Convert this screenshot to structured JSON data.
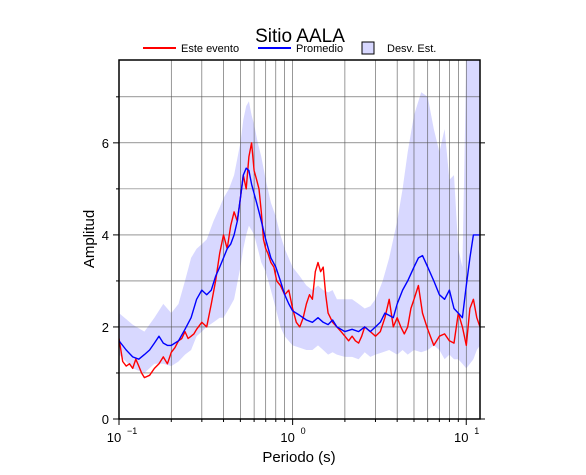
{
  "chart_data": {
    "type": "line",
    "title": "Sitio AALA",
    "xlabel": "Periodo (s)",
    "ylabel": "Amplitud",
    "xscale": "log",
    "xlim": [
      0.1,
      12
    ],
    "ylim": [
      0,
      7.8
    ],
    "x_ticks": [
      0.1,
      1,
      10
    ],
    "x_tick_labels": [
      [
        "10",
        "−1"
      ],
      [
        "10",
        "0"
      ],
      [
        "10",
        "1"
      ]
    ],
    "y_ticks": [
      0,
      2,
      4,
      6
    ],
    "y_tick_labels": [
      "0",
      "2",
      "4",
      "6"
    ],
    "grid": true,
    "legend_position": "top",
    "legend": [
      {
        "label": "Este evento",
        "kind": "line",
        "color": "#ff0000"
      },
      {
        "label": "Promedio",
        "kind": "line",
        "color": "#0000ff"
      },
      {
        "label": "Desv. Est.",
        "kind": "band",
        "color": "#d8d8ff"
      }
    ],
    "series": [
      {
        "name": "Este evento",
        "color": "#ff0000",
        "x": [
          0.1,
          0.105,
          0.11,
          0.115,
          0.12,
          0.125,
          0.13,
          0.135,
          0.14,
          0.15,
          0.16,
          0.17,
          0.18,
          0.19,
          0.2,
          0.21,
          0.22,
          0.23,
          0.24,
          0.25,
          0.26,
          0.27,
          0.28,
          0.3,
          0.32,
          0.34,
          0.36,
          0.38,
          0.4,
          0.42,
          0.44,
          0.46,
          0.48,
          0.5,
          0.52,
          0.54,
          0.56,
          0.58,
          0.6,
          0.62,
          0.64,
          0.66,
          0.68,
          0.7,
          0.72,
          0.75,
          0.78,
          0.81,
          0.85,
          0.9,
          0.95,
          1.0,
          1.05,
          1.1,
          1.15,
          1.2,
          1.25,
          1.3,
          1.35,
          1.4,
          1.45,
          1.5,
          1.55,
          1.6,
          1.65,
          1.7,
          1.8,
          1.9,
          2.0,
          2.1,
          2.2,
          2.3,
          2.4,
          2.5,
          2.6,
          2.8,
          3.0,
          3.2,
          3.4,
          3.6,
          3.8,
          4.0,
          4.2,
          4.4,
          4.6,
          4.8,
          5.0,
          5.3,
          5.6,
          6.0,
          6.5,
          7.0,
          7.5,
          8.0,
          8.5,
          9.0,
          9.5,
          10.0,
          10.5,
          11.0,
          11.5,
          12.0
        ],
        "y": [
          1.75,
          1.25,
          1.15,
          1.2,
          1.1,
          1.3,
          1.15,
          1.0,
          0.9,
          0.95,
          1.1,
          1.2,
          1.35,
          1.2,
          1.45,
          1.55,
          1.7,
          1.75,
          1.9,
          1.75,
          1.8,
          1.85,
          1.95,
          2.1,
          2.0,
          2.5,
          3.0,
          3.6,
          4.0,
          3.7,
          4.2,
          4.5,
          4.3,
          4.8,
          5.3,
          5.0,
          5.7,
          6.0,
          5.4,
          5.2,
          5.0,
          4.5,
          3.9,
          3.7,
          3.6,
          3.4,
          3.3,
          3.0,
          2.9,
          2.7,
          2.8,
          2.4,
          2.1,
          2.0,
          2.2,
          2.5,
          2.7,
          2.6,
          3.2,
          3.4,
          3.2,
          3.3,
          2.7,
          2.3,
          2.2,
          2.1,
          2.0,
          1.9,
          1.8,
          1.7,
          1.8,
          1.7,
          1.65,
          1.8,
          2.0,
          1.9,
          1.8,
          1.9,
          2.2,
          2.6,
          2.0,
          2.2,
          2.0,
          1.85,
          2.0,
          2.4,
          2.6,
          2.9,
          2.3,
          1.95,
          1.6,
          1.8,
          1.85,
          1.7,
          1.65,
          2.3,
          2.0,
          1.6,
          2.4,
          2.6,
          2.2,
          2.0
        ]
      },
      {
        "name": "Promedio",
        "color": "#0000ff",
        "x": [
          0.1,
          0.11,
          0.12,
          0.13,
          0.14,
          0.15,
          0.16,
          0.17,
          0.18,
          0.19,
          0.2,
          0.22,
          0.24,
          0.26,
          0.28,
          0.3,
          0.32,
          0.34,
          0.36,
          0.38,
          0.4,
          0.42,
          0.44,
          0.46,
          0.48,
          0.5,
          0.52,
          0.54,
          0.56,
          0.58,
          0.6,
          0.62,
          0.64,
          0.66,
          0.68,
          0.7,
          0.75,
          0.8,
          0.85,
          0.9,
          0.95,
          1.0,
          1.1,
          1.2,
          1.3,
          1.4,
          1.5,
          1.6,
          1.7,
          1.8,
          1.9,
          2.0,
          2.2,
          2.4,
          2.6,
          2.8,
          3.0,
          3.2,
          3.4,
          3.6,
          3.8,
          4.0,
          4.3,
          4.6,
          5.0,
          5.3,
          5.6,
          6.0,
          6.5,
          7.0,
          7.5,
          8.0,
          8.5,
          9.0,
          9.5,
          10.0,
          10.5,
          11.0,
          11.5,
          12.0
        ],
        "y": [
          1.7,
          1.5,
          1.35,
          1.3,
          1.4,
          1.5,
          1.65,
          1.8,
          1.65,
          1.6,
          1.6,
          1.7,
          1.95,
          2.2,
          2.6,
          2.8,
          2.7,
          2.8,
          3.1,
          3.3,
          3.5,
          3.7,
          3.8,
          4.0,
          4.3,
          4.8,
          5.3,
          5.45,
          5.4,
          5.1,
          4.9,
          4.7,
          4.5,
          4.3,
          4.1,
          3.9,
          3.5,
          3.3,
          3.0,
          2.7,
          2.5,
          2.35,
          2.25,
          2.15,
          2.1,
          2.2,
          2.1,
          2.05,
          2.15,
          2.0,
          1.95,
          1.9,
          1.95,
          1.9,
          2.0,
          1.9,
          2.0,
          2.1,
          2.3,
          2.25,
          2.2,
          2.5,
          2.8,
          3.0,
          3.3,
          3.5,
          3.55,
          3.3,
          3.0,
          2.7,
          2.6,
          2.8,
          2.4,
          2.3,
          2.2,
          2.9,
          3.5,
          4.0,
          4.0,
          4.0
        ]
      }
    ],
    "band": {
      "name": "Desv. Est.",
      "color": "#d8d8ff",
      "x": [
        0.1,
        0.12,
        0.14,
        0.16,
        0.18,
        0.2,
        0.22,
        0.24,
        0.26,
        0.28,
        0.3,
        0.32,
        0.35,
        0.38,
        0.4,
        0.43,
        0.46,
        0.5,
        0.52,
        0.54,
        0.56,
        0.58,
        0.6,
        0.63,
        0.66,
        0.7,
        0.75,
        0.8,
        0.85,
        0.9,
        1.0,
        1.1,
        1.2,
        1.3,
        1.4,
        1.5,
        1.6,
        1.7,
        1.8,
        2.0,
        2.2,
        2.4,
        2.6,
        2.8,
        3.0,
        3.3,
        3.6,
        4.0,
        4.3,
        4.6,
        5.0,
        5.5,
        6.0,
        6.5,
        7.0,
        7.5,
        8.0,
        8.5,
        9.0,
        9.5,
        10.0,
        10.5,
        11.0,
        11.5,
        12.0
      ],
      "upper": [
        2.3,
        2.05,
        1.9,
        2.2,
        2.5,
        2.3,
        2.5,
        3.0,
        3.5,
        3.7,
        3.8,
        3.9,
        4.3,
        4.6,
        4.8,
        5.0,
        5.3,
        6.0,
        6.5,
        6.8,
        6.9,
        6.6,
        6.4,
        6.0,
        5.7,
        5.2,
        4.7,
        4.4,
        4.0,
        3.7,
        3.3,
        3.1,
        2.9,
        2.8,
        2.9,
        2.8,
        2.75,
        2.8,
        2.6,
        2.6,
        2.6,
        2.5,
        2.4,
        2.45,
        2.6,
        3.0,
        3.5,
        4.3,
        5.0,
        5.8,
        6.6,
        7.1,
        7.0,
        6.3,
        5.8,
        6.3,
        5.2,
        5.3,
        3.7,
        3.3,
        7.8,
        7.8,
        7.8,
        7.8,
        7.8
      ],
      "lower": [
        1.4,
        1.1,
        1.0,
        1.2,
        1.2,
        1.15,
        1.25,
        1.4,
        1.5,
        1.8,
        1.9,
        2.0,
        2.1,
        2.2,
        2.2,
        2.4,
        2.6,
        3.3,
        3.7,
        4.0,
        4.2,
        4.1,
        4.0,
        3.7,
        3.4,
        3.2,
        2.8,
        2.4,
        2.0,
        1.8,
        1.6,
        1.55,
        1.5,
        1.5,
        1.6,
        1.5,
        1.4,
        1.45,
        1.4,
        1.35,
        1.35,
        1.3,
        1.45,
        1.35,
        1.4,
        1.45,
        1.5,
        1.4,
        1.5,
        1.4,
        1.5,
        1.45,
        1.5,
        1.6,
        1.5,
        1.3,
        1.4,
        1.3,
        1.3,
        1.2,
        1.1,
        1.2,
        1.3,
        1.5,
        1.6
      ]
    }
  }
}
